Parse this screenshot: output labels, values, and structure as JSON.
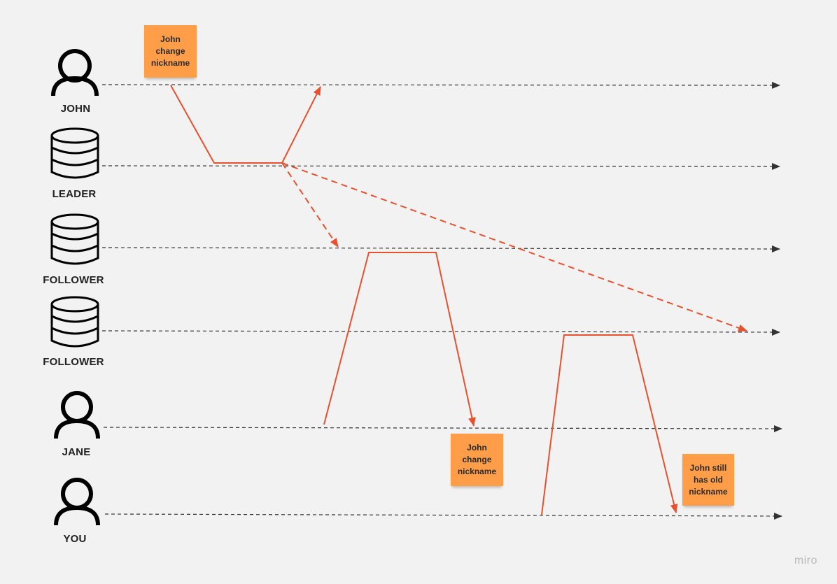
{
  "actors": [
    {
      "id": "john",
      "label": "JOHN",
      "icon": "person-icon"
    },
    {
      "id": "leader",
      "label": "LEADER",
      "icon": "database-icon"
    },
    {
      "id": "follower1",
      "label": "FOLLOWER",
      "icon": "database-icon"
    },
    {
      "id": "follower2",
      "label": "FOLLOWER",
      "icon": "database-icon"
    },
    {
      "id": "jane",
      "label": "JANE",
      "icon": "person-icon"
    },
    {
      "id": "you",
      "label": "YOU",
      "icon": "person-icon"
    }
  ],
  "notes": [
    {
      "id": "note-john",
      "text": "John\nchange\nnickname"
    },
    {
      "id": "note-jane",
      "text": "John\nchange\nnickname"
    },
    {
      "id": "note-you",
      "text": "John still\nhas old\nnickname"
    }
  ],
  "colors": {
    "background": "#f2f2f2",
    "accent": "#e8512e",
    "sticky": "#ff9d48",
    "timeline": "#333333"
  },
  "watermark": "miro"
}
